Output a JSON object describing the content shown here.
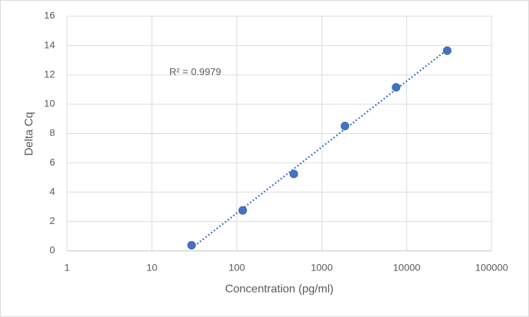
{
  "chart_data": {
    "type": "scatter",
    "x_label": "Concentration (pg/ml)",
    "y_label": "Delta Cq",
    "x_log": true,
    "grid": true,
    "xlim": [
      1,
      100000
    ],
    "xticks": [
      1,
      10,
      100,
      1000,
      10000,
      100000
    ],
    "ylim": [
      0,
      16
    ],
    "yticks": [
      0,
      2,
      4,
      6,
      8,
      10,
      12,
      14,
      16
    ],
    "series": [
      {
        "color": "#4472c4",
        "x": [
          29.3,
          117.2,
          468.8,
          1875,
          7500,
          30000
        ],
        "values": [
          0.38,
          2.75,
          5.24,
          8.51,
          11.15,
          13.65
        ]
      }
    ],
    "trendline": {
      "type": "linear",
      "label": "R² = 0.9979",
      "style": "dotted"
    }
  }
}
